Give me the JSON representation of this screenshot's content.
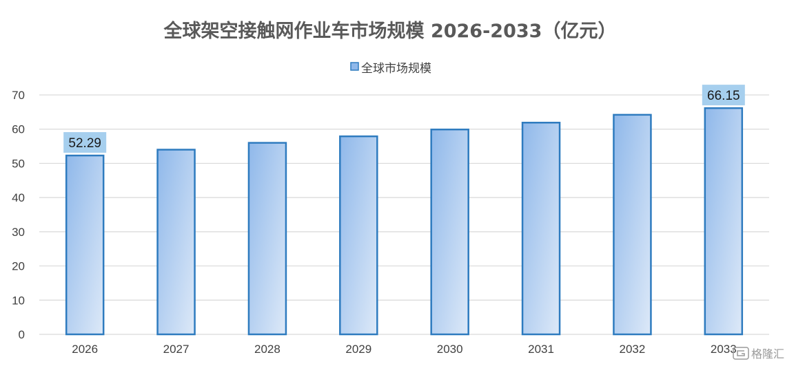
{
  "chart_data": {
    "type": "bar",
    "title": "全球架空接触网作业车市场规模 2026-2033（亿元）",
    "xlabel": "",
    "ylabel": "",
    "categories": [
      "2026",
      "2027",
      "2028",
      "2029",
      "2030",
      "2031",
      "2032",
      "2033"
    ],
    "series": [
      {
        "name": "全球市场规模",
        "values": [
          52.29,
          54.0,
          56.0,
          57.9,
          59.9,
          61.9,
          64.2,
          66.15
        ]
      }
    ],
    "ylim": [
      0,
      70
    ],
    "yticks": [
      "0",
      "10",
      "20",
      "30",
      "40",
      "50",
      "60",
      "70"
    ],
    "data_labels": [
      {
        "category": "2026",
        "text": "52.29"
      },
      {
        "category": "2033",
        "text": "66.15"
      }
    ],
    "grid": true,
    "legend_position": "top-center",
    "colors": {
      "bar_fill_start": "#8fb8ea",
      "bar_fill_end": "#dde9f8",
      "bar_border": "#2e7bbf",
      "label_box": "#a6cfee",
      "gridline": "#d9d9d9"
    }
  },
  "watermark": {
    "icon": "gelonghui-logo-icon",
    "text": "格隆汇"
  }
}
